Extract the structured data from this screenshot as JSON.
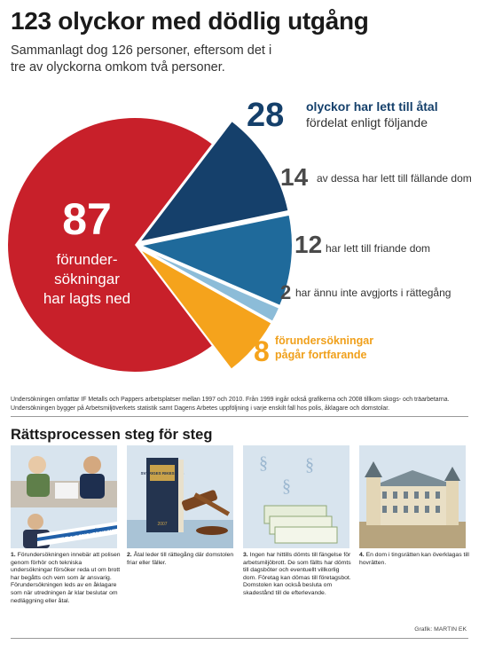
{
  "title": "123 olyckor med dödlig utgång",
  "subtitle": "Sammanlagt dog 126 personer, eftersom det i tre av olyckorna omkom två personer.",
  "colors": {
    "red": "#c8202a",
    "dark_blue": "#15406b",
    "mid_blue": "#1f6a9b",
    "light_blue": "#8cbcd8",
    "orange": "#f5a31c",
    "gray": "#4a4a4a"
  },
  "labels": {
    "big_number": "87",
    "big_text": "förunder-\nsökningar\nhar lagts ned",
    "n28": "28",
    "t28a": "olyckor har lett till åtal",
    "t28b": "fördelat enligt följande",
    "n14": "14",
    "t14": "av dessa har lett till fällande dom",
    "n12": "12",
    "t12": "har lett till friande dom",
    "n2": "2",
    "t2": "har ännu inte avgjorts i rättegång",
    "n8": "8",
    "t8a": "förundersökningar",
    "t8b": "pågår fortfarande"
  },
  "chart_data": {
    "type": "pie",
    "title": "123 olyckor med dödlig utgång",
    "slices": [
      {
        "label": "förundersökningar har lagts ned",
        "value": 87,
        "color": "#c8202a"
      },
      {
        "label": "av dessa har lett till fällande dom",
        "value": 14,
        "color": "#15406b",
        "group": "olyckor har lett till åtal"
      },
      {
        "label": "har lett till friande dom",
        "value": 12,
        "color": "#1f6a9b",
        "group": "olyckor har lett till åtal"
      },
      {
        "label": "har ännu inte avgjorts i rättegång",
        "value": 2,
        "color": "#8cbcd8",
        "group": "olyckor har lett till åtal"
      },
      {
        "label": "förundersökningar pågår fortfarande",
        "value": 8,
        "color": "#f5a31c"
      }
    ],
    "total": 123
  },
  "note": "Undersökningen omfattar IF Metalls och Pappers arbetsplatser mellan 1997 och 2010. Från 1999 ingår också grafikerna och 2008 tillkom skogs- och träarbetarna. Undersökningen bygger på Arbetsmiljöverkets statistik samt Dagens Arbetes uppföljning i varje enskilt fall hos polis, åklagare och domstolar.",
  "section": {
    "title": "Rättsprocessen steg för steg",
    "panel_text": {
      "polis_tape": "POLIS AVSPÄRRAT",
      "book_spine": "SVERIGES RIKES LAG",
      "book_year": "2007",
      "paragraph_sign": "§"
    },
    "steps": [
      {
        "num": "1.",
        "text": "Förundersökningen innebär att polisen genom förhör och tekniska undersökningar försöker reda ut om brott har begåtts och vem som är ansvarig. Förundersökningen leds av en åklagare som när utredningen är klar beslutar om nedläggning eller åtal."
      },
      {
        "num": "2.",
        "text": "Åtal leder till rättegång där domstolen friar eller fäller."
      },
      {
        "num": "3.",
        "text": "Ingen har hittills dömts till fängelse för arbetsmiljöbrott. De som fällts har dömts till dagsböter och eventuellt villkorlig dom. Företag kan dömas till företagsbot. Domstolen kan också besluta om skadestånd till de efterlevande."
      },
      {
        "num": "4.",
        "text": "En dom i tingsrätten kan överklagas till hovrätten."
      }
    ]
  },
  "credit": "Grafik: MARTIN EK"
}
